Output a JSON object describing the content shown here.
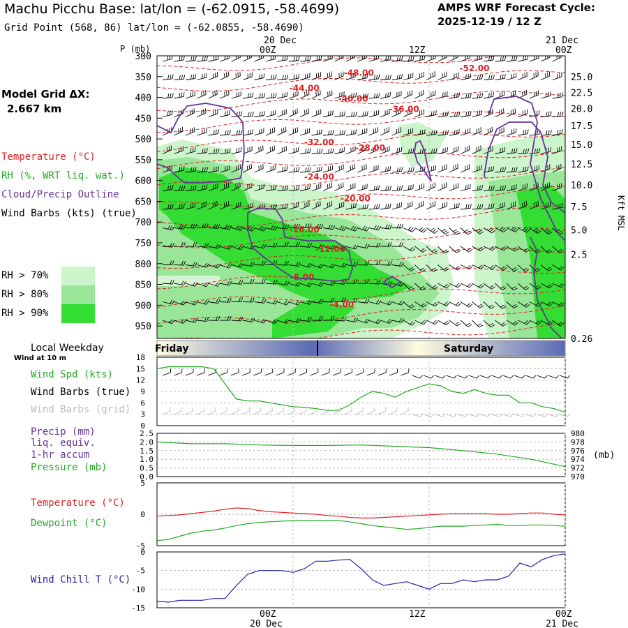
{
  "header": {
    "title": "Machu Picchu Base:  lat/lon = (-62.0915, -58.4699)",
    "grid_point": "Grid Point (568, 86) lat/lon = (-62.0855, -58.4690)",
    "cycle_label": "AMPS WRF Forecast Cycle:",
    "cycle_value": "2025-12-19 / 12  Z"
  },
  "left_panel": {
    "grid_dx_label": "Model Grid ΔX:",
    "grid_dx_value": "2.667 km",
    "legend": [
      {
        "text": "Temperature (°C)",
        "color": "#dd2222"
      },
      {
        "text": "RH (%, WRT liq. wat.)",
        "color": "#22aa22"
      },
      {
        "text": "Cloud/Precip Outline",
        "color": "#663399"
      },
      {
        "text": "Wind Barbs (kts) (true)",
        "color": "#000000"
      }
    ],
    "rh_key": [
      {
        "text": "RH > 70%",
        "color": "#ccf5cc"
      },
      {
        "text": "RH > 80%",
        "color": "#99e699"
      },
      {
        "text": "RH > 90%",
        "color": "#33dd33"
      }
    ],
    "weekday_label": "Local Weekday",
    "wind_at_label": "Wind at 10 m",
    "wind_legend": [
      {
        "text": "Wind Spd (kts)",
        "color": "#22aa22"
      },
      {
        "text": "Wind Barbs (true)",
        "color": "#000000"
      },
      {
        "text": "Wind Barbs (grid)",
        "color": "#bbbbbb"
      }
    ],
    "precip_legend": [
      {
        "text": "Precip (mm)",
        "color": "#663399"
      },
      {
        "text": "liq. equiv.",
        "color": "#663399"
      },
      {
        "text": "1-hr accum",
        "color": "#663399"
      },
      {
        "text": "Pressure (mb)",
        "color": "#22aa22"
      }
    ],
    "temp_legend": [
      {
        "text": "Temperature (°C)",
        "color": "#dd2222"
      },
      {
        "text": "Dewpoint (°C)",
        "color": "#22aa22"
      }
    ],
    "chill_legend": [
      {
        "text": "Wind Chill T (°C)",
        "color": "#2222aa"
      }
    ]
  },
  "time_axis": {
    "date_top": "20 Dec",
    "date_top_right": "21 Dec",
    "ticks": [
      {
        "label": "00Z",
        "hour": 12
      },
      {
        "label": "12Z",
        "hour": 24
      },
      {
        "label": "00Z",
        "hour": 36
      }
    ],
    "date_bottom": "20 Dec",
    "date_bottom_right": "21 Dec"
  },
  "weekday_bar": {
    "day1": "Friday",
    "day2": "Saturday"
  },
  "colors": {
    "temp": "#dd2222",
    "rh": "#22aa22",
    "cloud": "#663399",
    "chill": "#2222aa",
    "grid": "#bbbbbb",
    "rh70": "#ccf5cc",
    "rh80": "#99e699",
    "rh90": "#33dd33"
  },
  "chart_data": [
    {
      "type": "contour",
      "name": "cross-section",
      "y_axis_label": "P (mb)",
      "y_ticks": [
        "300",
        "350",
        "400",
        "450",
        "500",
        "550",
        "600",
        "650",
        "700",
        "750",
        "800",
        "850",
        "900",
        "950"
      ],
      "ylim": [
        300,
        980
      ],
      "xlim_hours": [
        0,
        36
      ],
      "right_axis_label": "Kft MSL",
      "right_ticks": [
        {
          "label": "25.0",
          "p": 350
        },
        {
          "label": "22.5",
          "p": 388
        },
        {
          "label": "20.0",
          "p": 427
        },
        {
          "label": "17.5",
          "p": 468
        },
        {
          "label": "15.0",
          "p": 513
        },
        {
          "label": "12.5",
          "p": 560
        },
        {
          "label": "10.0",
          "p": 611
        },
        {
          "label": "7.5",
          "p": 663
        },
        {
          "label": "5.0",
          "p": 719
        },
        {
          "label": "2.5",
          "p": 778
        },
        {
          "label": "0.26",
          "p": 980
        }
      ],
      "temperature_contours": [
        {
          "label": "-52.00",
          "hour": 28.0,
          "p": 337
        },
        {
          "label": "-48.00",
          "hour": 17.8,
          "p": 348
        },
        {
          "label": "-44.00",
          "hour": 13.0,
          "p": 385
        },
        {
          "label": "-40.00",
          "hour": 17.3,
          "p": 410
        },
        {
          "label": "-36.00",
          "hour": 21.8,
          "p": 435
        },
        {
          "label": "-32.00",
          "hour": 14.3,
          "p": 515
        },
        {
          "label": "-28.00",
          "hour": 18.8,
          "p": 528
        },
        {
          "label": "-24.00",
          "hour": 14.3,
          "p": 598
        },
        {
          "label": "-20.00",
          "hour": 17.5,
          "p": 650
        },
        {
          "label": "-16.00",
          "hour": 13.0,
          "p": 725
        },
        {
          "label": "-12.00",
          "hour": 15.3,
          "p": 772
        },
        {
          "label": "-8.00",
          "hour": 12.8,
          "p": 840
        },
        {
          "label": "-4.00",
          "hour": 16.3,
          "p": 905
        }
      ]
    },
    {
      "type": "line",
      "name": "wind-speed",
      "ylabel": "Wind Spd (kts)",
      "ylim": [
        0,
        18
      ],
      "y_ticks": [
        "0",
        "3",
        "6",
        "9",
        "12",
        "15",
        "18"
      ],
      "hours": [
        0,
        1,
        2,
        3,
        4,
        5,
        6,
        7,
        8,
        9,
        10,
        11,
        12,
        13,
        14,
        15,
        16,
        17,
        18,
        19,
        20,
        21,
        22,
        23,
        24,
        25,
        26,
        27,
        28,
        29,
        30,
        31,
        32,
        33,
        34,
        35,
        36
      ],
      "values": [
        15,
        15.5,
        15.5,
        15.5,
        15.5,
        15,
        11,
        7,
        6.5,
        6.5,
        6,
        5.5,
        5,
        4.8,
        4.5,
        4,
        4,
        5.5,
        7.5,
        9,
        8.5,
        7.5,
        9,
        10,
        11,
        10.5,
        9,
        8.5,
        9.5,
        8.5,
        8,
        8,
        6,
        6,
        5,
        4.5,
        3.5
      ]
    },
    {
      "type": "line",
      "name": "pressure",
      "ylabel": "Pressure (mb)",
      "ylim": [
        970,
        980
      ],
      "right_ticks": [
        "970",
        "972",
        "974",
        "976",
        "978",
        "980"
      ],
      "left_ticks": [
        "0.0",
        "0.5",
        "1.0",
        "1.5",
        "2.0",
        "2.5"
      ],
      "hours": [
        0,
        3,
        6,
        9,
        12,
        15,
        18,
        21,
        24,
        27,
        30,
        33,
        36
      ],
      "values": [
        978.0,
        977.6,
        977.6,
        977.3,
        977.2,
        977.2,
        977.3,
        977.0,
        976.7,
        976.0,
        975.2,
        974.0,
        972.3
      ],
      "precip_mm": 0.0
    },
    {
      "type": "line",
      "name": "temperature-dewpoint",
      "ylim": [
        -5,
        5
      ],
      "y_ticks": [
        "-5",
        "0",
        "5"
      ],
      "hours": [
        0,
        1,
        2,
        3,
        4,
        5,
        6,
        7,
        8,
        9,
        10,
        11,
        12,
        13,
        14,
        15,
        16,
        17,
        18,
        19,
        20,
        21,
        22,
        23,
        24,
        25,
        26,
        27,
        28,
        29,
        30,
        31,
        32,
        33,
        34,
        35,
        36
      ],
      "series": [
        {
          "name": "Temperature (°C)",
          "values": [
            -0.3,
            -0.2,
            -0.1,
            0.1,
            0.3,
            0.5,
            0.8,
            1.0,
            0.9,
            0.6,
            0.4,
            0.3,
            0.2,
            0.1,
            0.0,
            -0.2,
            -0.3,
            -0.5,
            -0.6,
            -0.6,
            -0.5,
            -0.4,
            -0.3,
            -0.2,
            -0.1,
            0.0,
            0.1,
            0.1,
            0.1,
            0.1,
            0.0,
            0.0,
            0.1,
            0.2,
            0.2,
            0.0,
            -0.1
          ]
        },
        {
          "name": "Dewpoint (°C)",
          "values": [
            -4.2,
            -4.0,
            -3.5,
            -3.0,
            -2.7,
            -2.5,
            -2.2,
            -1.8,
            -1.5,
            -1.3,
            -1.2,
            -1.1,
            -1.0,
            -1.0,
            -1.0,
            -1.0,
            -1.0,
            -1.2,
            -1.5,
            -1.8,
            -2.0,
            -2.2,
            -2.4,
            -2.3,
            -2.1,
            -1.9,
            -1.9,
            -1.9,
            -1.8,
            -1.7,
            -1.6,
            -1.8,
            -1.8,
            -1.7,
            -1.7,
            -1.8,
            -1.9
          ]
        }
      ]
    },
    {
      "type": "line",
      "name": "wind-chill",
      "ylabel": "Wind Chill T (°C)",
      "ylim": [
        -15,
        0
      ],
      "y_ticks": [
        "0",
        "-5",
        "-10",
        "-15"
      ],
      "hours": [
        0,
        1,
        2,
        3,
        4,
        5,
        6,
        7,
        8,
        9,
        10,
        11,
        12,
        13,
        14,
        15,
        16,
        17,
        18,
        19,
        20,
        21,
        22,
        23,
        24,
        25,
        26,
        27,
        28,
        29,
        30,
        31,
        32,
        33,
        34,
        35,
        36
      ],
      "values": [
        -13.2,
        -13.5,
        -13,
        -13,
        -13,
        -12.5,
        -12.5,
        -9,
        -6,
        -5,
        -5,
        -5,
        -5.5,
        -4.5,
        -2.5,
        -2.5,
        -2.2,
        -2,
        -4.5,
        -7.5,
        -9,
        -8.5,
        -8,
        -9,
        -10,
        -8.5,
        -8.5,
        -7.5,
        -8,
        -7.5,
        -7.5,
        -6.5,
        -3,
        -4,
        -2,
        -1,
        -0.5
      ]
    }
  ]
}
